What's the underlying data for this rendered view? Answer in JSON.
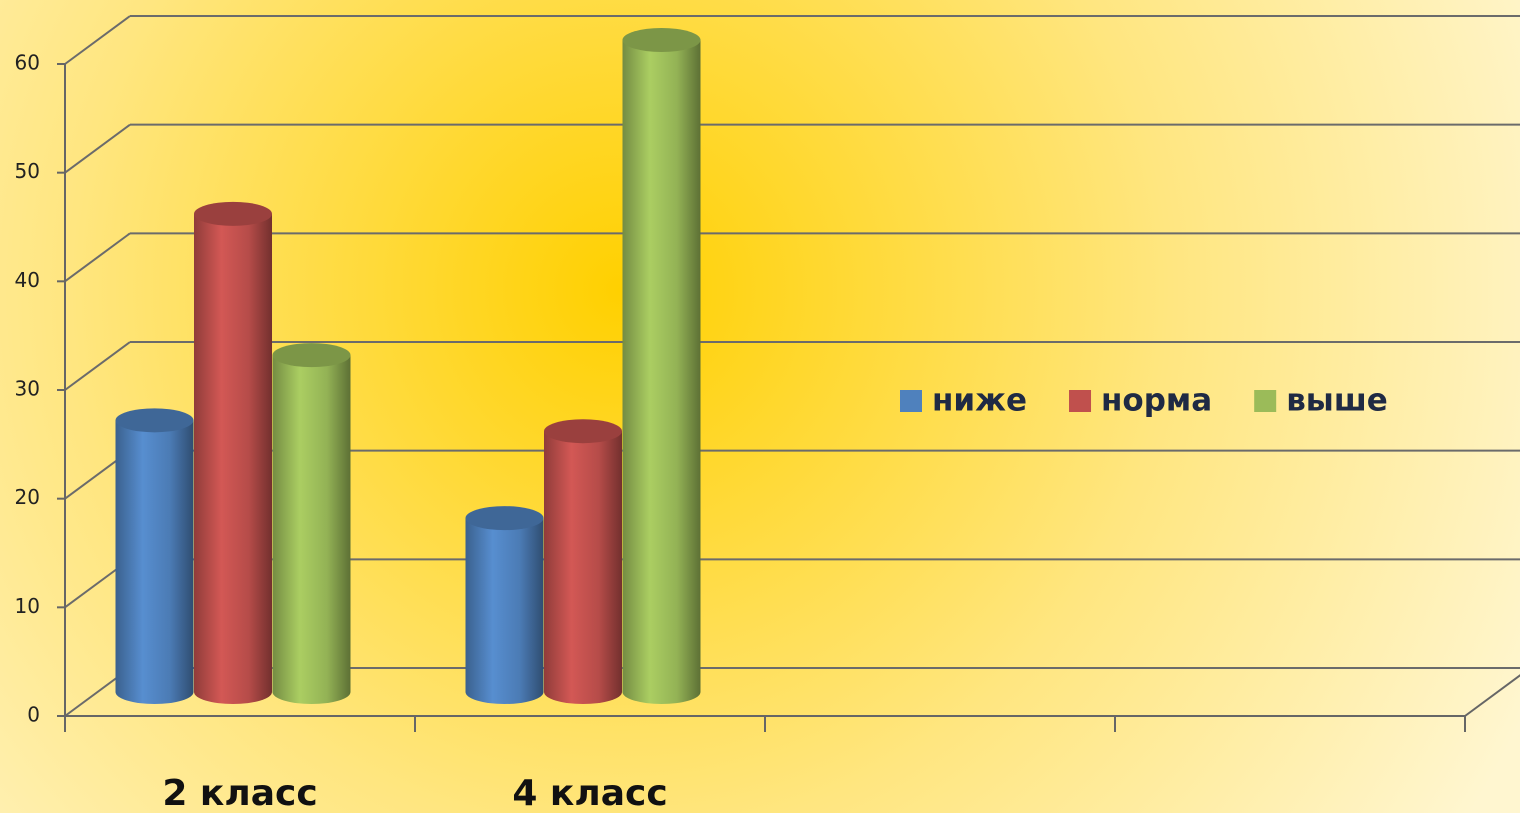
{
  "chart_data": {
    "type": "bar3d",
    "categories": [
      "2 класс",
      "4 класс",
      null,
      null
    ],
    "series": [
      {
        "name": "ниже",
        "color": "#4f81bd",
        "values": [
          25,
          16,
          null,
          null
        ]
      },
      {
        "name": "норма",
        "color": "#c0504d",
        "values": [
          44,
          24,
          null,
          null
        ]
      },
      {
        "name": "выше",
        "color": "#9bbb59",
        "values": [
          31,
          60,
          null,
          null
        ]
      }
    ],
    "ylim": [
      0,
      60
    ],
    "yticks": [
      0,
      10,
      20,
      30,
      40,
      50,
      60
    ],
    "grid": true
  }
}
